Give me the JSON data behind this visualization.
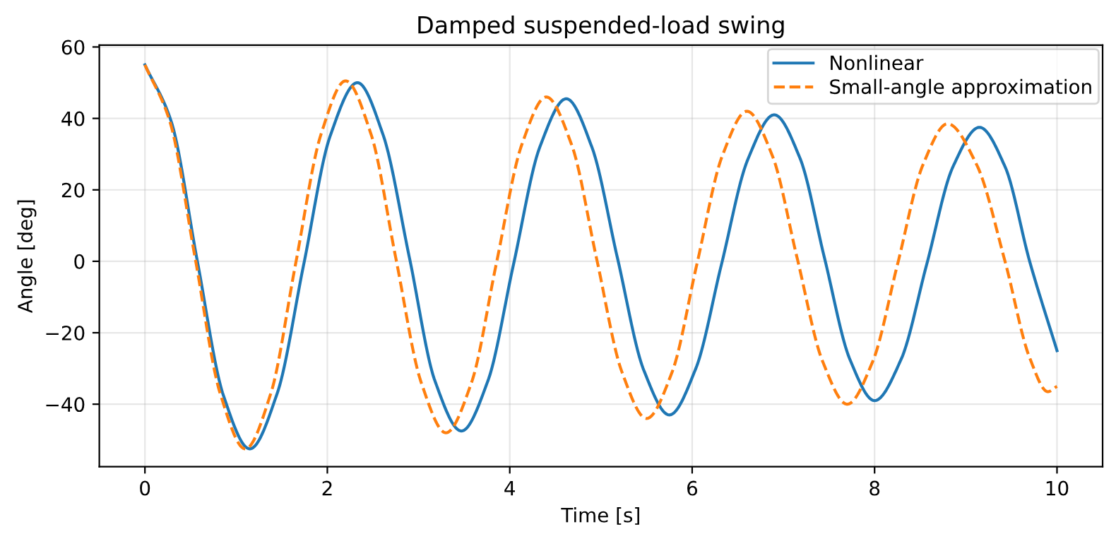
{
  "chart_data": {
    "type": "line",
    "title": "Damped suspended-load swing",
    "xlabel": "Time [s]",
    "ylabel": "Angle [deg]",
    "xlim": [
      -0.5,
      10.5
    ],
    "xticks": [
      0,
      2,
      4,
      6,
      8,
      10
    ],
    "ylim": [
      -57.5,
      60.5
    ],
    "yticks": [
      {
        "value": -40,
        "label": "−40"
      },
      {
        "value": -20,
        "label": "−20"
      },
      0,
      20,
      40,
      60
    ],
    "grid": true,
    "legend": "top right",
    "marker": "none",
    "series": [
      {
        "name": "Nonlinear",
        "color": "#1f77b4",
        "line_style": "solid",
        "x": [
          0,
          0.29,
          0.575,
          0.86,
          1.15,
          1.45,
          1.74,
          2.03,
          2.33,
          2.61,
          2.9,
          3.18,
          3.47,
          3.76,
          4.04,
          4.33,
          4.62,
          4.9,
          5.18,
          5.47,
          5.75,
          6.04,
          6.32,
          6.61,
          6.9,
          7.18,
          7.45,
          7.73,
          8.0,
          8.29,
          8.57,
          8.86,
          9.15,
          9.43,
          9.7,
          10
        ],
        "values": [
          55,
          39,
          0,
          -37.5,
          -52.5,
          -37,
          -1,
          35,
          50,
          35.5,
          1,
          -33.5,
          -47.5,
          -33.5,
          -1,
          32,
          45.5,
          32,
          1,
          -30.5,
          -43,
          -30,
          -1,
          28.5,
          41,
          29,
          1,
          -27.5,
          -39,
          -27.5,
          -1,
          26.5,
          37.5,
          26.5,
          0,
          -25
        ]
      },
      {
        "name": "Small-angle approximation",
        "color": "#ff7f0e",
        "line_style": "dashed",
        "x": [
          0,
          0.275,
          0.55,
          0.825,
          1.1,
          1.38,
          1.65,
          1.93,
          2.2,
          2.48,
          2.75,
          3.03,
          3.3,
          3.58,
          3.85,
          4.13,
          4.4,
          4.68,
          4.95,
          5.23,
          5.5,
          5.78,
          6.05,
          6.33,
          6.6,
          6.88,
          7.15,
          7.43,
          7.7,
          7.98,
          8.25,
          8.53,
          8.8,
          9.12,
          9.43,
          9.7,
          9.9,
          10
        ],
        "values": [
          55,
          39,
          1,
          -37,
          -52.5,
          -37,
          -1,
          35.5,
          50.5,
          35.5,
          1,
          -34,
          -48,
          -34,
          -1,
          32.5,
          46,
          32.5,
          1,
          -31,
          -44,
          -31,
          -1,
          29.5,
          42,
          29.5,
          1,
          -28,
          -40,
          -28,
          -1,
          27,
          38.5,
          27,
          0,
          -27,
          -36.5,
          -35
        ]
      }
    ]
  }
}
